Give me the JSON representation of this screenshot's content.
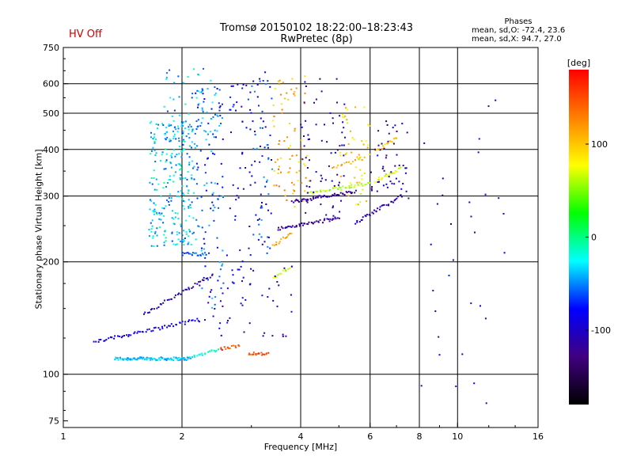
{
  "title_line1": "Tromsø 20150102 18:22:00–18:23:43",
  "title_line2": "RwPretec (8p)",
  "hv_status": "HV Off",
  "hv_color": "#cc0000",
  "phase_box": {
    "heading": "Phases",
    "line_o": "mean, sd,O: -72.4, 23.6",
    "line_x": "mean, sd,X:  94.7, 27.0"
  },
  "chart_data": {
    "type": "scatter",
    "title": "Tromsø 20150102 18:22:00–18:23:43",
    "subtitle": "RwPretec (8p)",
    "xlabel": "Frequency [MHz]",
    "ylabel": "Stationary phase Virtual Height [km]",
    "x_scale": "log",
    "y_scale": "log",
    "xlim": [
      1,
      16
    ],
    "ylim": [
      72,
      750
    ],
    "x_ticks": [
      1,
      2,
      4,
      6,
      8,
      10,
      16
    ],
    "x_tick_labels": [
      "1",
      "2",
      "4",
      "6",
      "8",
      "10",
      "16"
    ],
    "x_gridlines": [
      2,
      4,
      6,
      8,
      10
    ],
    "y_ticks": [
      75,
      100,
      200,
      300,
      400,
      500,
      600,
      750
    ],
    "y_tick_labels": [
      "75",
      "100",
      "200",
      "300",
      "400",
      "500",
      "600",
      "750"
    ],
    "y_gridlines": [
      100,
      200,
      300,
      400,
      500,
      600
    ],
    "grid": true,
    "colorbar": {
      "label": "[deg]",
      "min": -180,
      "max": 180,
      "ticks": [
        100,
        0,
        -100
      ],
      "tick_labels": [
        "100",
        "0",
        "-100"
      ],
      "colors": [
        "#ff0000",
        "#ff8000",
        "#ffff00",
        "#00ff00",
        "#00ffff",
        "#0000ff",
        "#400080",
        "#000000"
      ]
    },
    "traces": [
      {
        "x": [
          1.35,
          2.1
        ],
        "y": [
          110,
          110
        ],
        "phase": -40,
        "n": 95
      },
      {
        "x": [
          2.1,
          2.5
        ],
        "y": [
          111,
          117
        ],
        "phase": -20,
        "n": 20
      },
      {
        "x": [
          2.5,
          2.8
        ],
        "y": [
          117,
          119
        ],
        "phase": 150,
        "n": 14
      },
      {
        "x": [
          2.95,
          3.3
        ],
        "y": [
          114,
          113
        ],
        "phase": 150,
        "n": 18
      },
      {
        "x": [
          1.2,
          2.2
        ],
        "y": [
          122,
          140
        ],
        "phase": -90,
        "n": 60
      },
      {
        "x": [
          1.6,
          2.4
        ],
        "y": [
          145,
          185
        ],
        "phase": -110,
        "n": 40
      },
      {
        "x": [
          2.0,
          2.3
        ],
        "y": [
          210,
          210
        ],
        "phase": -55,
        "n": 18
      },
      {
        "x": [
          3.5,
          5.0
        ],
        "y": [
          245,
          262
        ],
        "phase": -120,
        "n": 45
      },
      {
        "x": [
          3.8,
          5.5
        ],
        "y": [
          290,
          308
        ],
        "phase": -115,
        "n": 50
      },
      {
        "x": [
          4.2,
          6.0
        ],
        "y": [
          305,
          325
        ],
        "phase": 60,
        "n": 35
      },
      {
        "x": [
          5.5,
          7.2
        ],
        "y": [
          255,
          300
        ],
        "phase": -110,
        "n": 35
      },
      {
        "x": [
          6.2,
          7.2
        ],
        "y": [
          330,
          355
        ],
        "phase": 70,
        "n": 20
      },
      {
        "x": [
          6.2,
          7.0
        ],
        "y": [
          395,
          430
        ],
        "phase": 100,
        "n": 16
      },
      {
        "x": [
          4.8,
          5.8
        ],
        "y": [
          355,
          380
        ],
        "phase": 110,
        "n": 16
      },
      {
        "x": [
          3.4,
          3.8
        ],
        "y": [
          180,
          195
        ],
        "phase": 60,
        "n": 12
      },
      {
        "x": [
          3.4,
          3.8
        ],
        "y": [
          220,
          240
        ],
        "phase": 115,
        "n": 14
      }
    ],
    "clusters": [
      {
        "x": [
          1.65,
          2.15
        ],
        "y": [
          220,
          480
        ],
        "phase": -35,
        "n": 260
      },
      {
        "x": [
          2.15,
          2.55
        ],
        "y": [
          150,
          600
        ],
        "phase": -60,
        "n": 120
      },
      {
        "x": [
          2.6,
          3.0
        ],
        "y": [
          150,
          620
        ],
        "phase": -90,
        "n": 55
      },
      {
        "x": [
          3.0,
          3.4
        ],
        "y": [
          210,
          650
        ],
        "phase": -70,
        "n": 70
      },
      {
        "x": [
          3.4,
          4.2
        ],
        "y": [
          280,
          630
        ],
        "phase": 110,
        "n": 75
      },
      {
        "x": [
          4.0,
          5.2
        ],
        "y": [
          260,
          620
        ],
        "phase": -110,
        "n": 70
      },
      {
        "x": [
          5.0,
          6.0
        ],
        "y": [
          280,
          520
        ],
        "phase": 90,
        "n": 50
      },
      {
        "x": [
          6.0,
          7.5
        ],
        "y": [
          300,
          480
        ],
        "phase": -115,
        "n": 50
      },
      {
        "x": [
          1.8,
          2.4
        ],
        "y": [
          420,
          660
        ],
        "phase": -40,
        "n": 60
      },
      {
        "x": [
          7.5,
          13.5
        ],
        "y": [
          80,
          600
        ],
        "phase": -100,
        "n": 32
      },
      {
        "x": [
          2.2,
          3.8
        ],
        "y": [
          125,
          200
        ],
        "phase": -100,
        "n": 45
      }
    ]
  }
}
